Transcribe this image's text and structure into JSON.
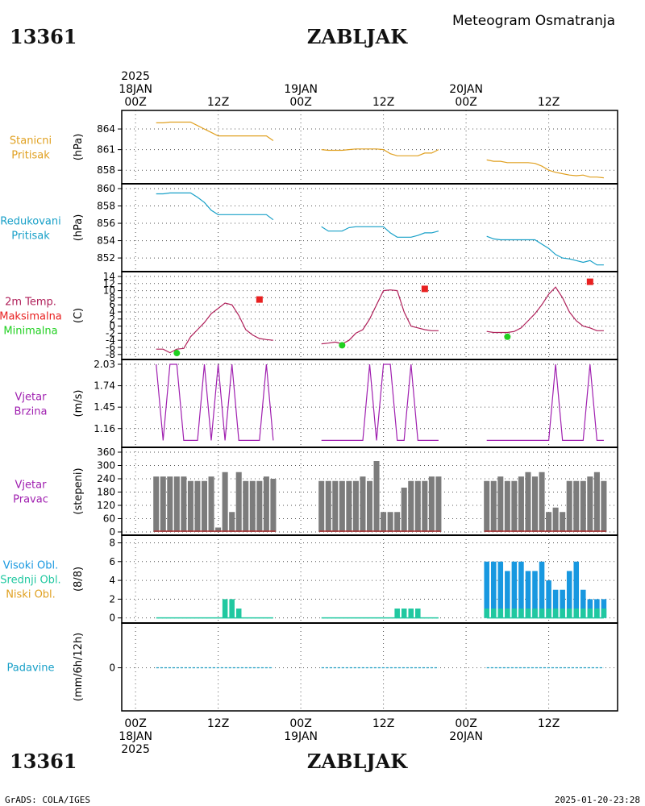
{
  "header": {
    "station_id": "13361",
    "station_name": "ZABLJAK",
    "title": "Meteogram Osmatranja"
  },
  "footer": {
    "station_id": "13361",
    "station_name": "ZABLJAK",
    "credit": "GrADS: COLA/IGES",
    "timestamp": "2025-01-20-23:28"
  },
  "time_axis": {
    "top_labels": [
      {
        "hour": 0,
        "lines": [
          "2025",
          "18JAN",
          "00Z"
        ]
      },
      {
        "hour": 12,
        "lines": [
          "12Z"
        ]
      },
      {
        "hour": 24,
        "lines": [
          "19JAN",
          "00Z"
        ]
      },
      {
        "hour": 36,
        "lines": [
          "12Z"
        ]
      },
      {
        "hour": 48,
        "lines": [
          "20JAN",
          "00Z"
        ]
      },
      {
        "hour": 60,
        "lines": [
          "12Z"
        ]
      }
    ],
    "bottom_labels": [
      {
        "hour": 0,
        "lines": [
          "00Z",
          "18JAN",
          "2025"
        ]
      },
      {
        "hour": 12,
        "lines": [
          "12Z"
        ]
      },
      {
        "hour": 24,
        "lines": [
          "00Z",
          "19JAN"
        ]
      },
      {
        "hour": 36,
        "lines": [
          "12Z"
        ]
      },
      {
        "hour": 48,
        "lines": [
          "00Z",
          "20JAN"
        ]
      },
      {
        "hour": 60,
        "lines": [
          "12Z"
        ]
      }
    ]
  },
  "colors": {
    "station_pressure": "#e0a020",
    "reduced_pressure": "#18a0c8",
    "temperature": "#b0205a",
    "tmax": "#e82020",
    "tmin": "#20d020",
    "wind": "#a020b0",
    "bars": "#7c7c7c",
    "cloud_high": "#1898e0",
    "cloud_mid": "#20c8a0",
    "cloud_low": "#e0a020",
    "precip": "#18a0c8"
  },
  "chart_data": [
    {
      "type": "line",
      "panel": "station_pressure",
      "labels": [
        "Stanicni",
        "Pritisak"
      ],
      "ylabel": "(hPa)",
      "ylim": [
        856.5,
        866.0
      ],
      "yticks": [
        858,
        861,
        864
      ],
      "series": [
        {
          "segment": 1,
          "x": [
            3,
            4,
            5,
            6,
            7,
            8,
            9,
            10,
            11,
            12,
            13,
            14,
            15,
            16,
            17,
            18,
            19,
            20
          ],
          "y": [
            864.9,
            864.9,
            865.0,
            865.0,
            865.0,
            865.0,
            864.5,
            864.0,
            863.5,
            863.0,
            863.0,
            863.0,
            863.0,
            863.0,
            863.0,
            863.0,
            863.0,
            862.3
          ]
        },
        {
          "segment": 2,
          "x": [
            27,
            28,
            29,
            30,
            31,
            32,
            33,
            34,
            35,
            36,
            37,
            38,
            39,
            40,
            41,
            42,
            43,
            44
          ],
          "y": [
            861.0,
            860.9,
            860.9,
            860.9,
            861.0,
            861.1,
            861.1,
            861.1,
            861.1,
            861.0,
            860.4,
            860.1,
            860.1,
            860.1,
            860.1,
            860.5,
            860.5,
            861.0
          ]
        },
        {
          "segment": 3,
          "x": [
            51,
            52,
            53,
            54,
            55,
            56,
            57,
            58,
            59,
            60,
            61,
            62,
            63,
            64,
            65,
            66,
            67,
            68
          ],
          "y": [
            859.5,
            859.3,
            859.3,
            859.1,
            859.1,
            859.1,
            859.1,
            859.0,
            858.6,
            858.0,
            857.7,
            857.5,
            857.3,
            857.2,
            857.3,
            857.0,
            857.0,
            856.9
          ]
        }
      ]
    },
    {
      "type": "line",
      "panel": "reduced_pressure",
      "labels": [
        "Redukovani",
        "Pritisak"
      ],
      "ylabel": "(hPa)",
      "ylim": [
        850.8,
        860.0
      ],
      "yticks": [
        852,
        854,
        856,
        858,
        860
      ],
      "series": [
        {
          "segment": 1,
          "x": [
            3,
            4,
            5,
            6,
            7,
            8,
            9,
            10,
            11,
            12,
            13,
            14,
            15,
            16,
            17,
            18,
            19,
            20
          ],
          "y": [
            859.4,
            859.4,
            859.5,
            859.5,
            859.5,
            859.5,
            859.0,
            858.4,
            857.5,
            857.0,
            857.0,
            857.0,
            857.0,
            857.0,
            857.0,
            857.0,
            857.0,
            856.4
          ]
        },
        {
          "segment": 2,
          "x": [
            27,
            28,
            29,
            30,
            31,
            32,
            33,
            34,
            35,
            36,
            37,
            38,
            39,
            40,
            41,
            42,
            43,
            44
          ],
          "y": [
            855.6,
            855.1,
            855.1,
            855.1,
            855.5,
            855.6,
            855.6,
            855.6,
            855.6,
            855.6,
            854.9,
            854.4,
            854.4,
            854.4,
            854.6,
            854.9,
            854.9,
            855.1
          ]
        },
        {
          "segment": 3,
          "x": [
            51,
            52,
            53,
            54,
            55,
            56,
            57,
            58,
            59,
            60,
            61,
            62,
            63,
            64,
            65,
            66,
            67,
            68
          ],
          "y": [
            854.5,
            854.2,
            854.1,
            854.1,
            854.1,
            854.1,
            854.1,
            854.1,
            853.6,
            853.1,
            852.4,
            852.0,
            851.9,
            851.7,
            851.5,
            851.7,
            851.2,
            851.2
          ]
        }
      ]
    },
    {
      "type": "line",
      "panel": "temperature",
      "labels": [
        "2m Temp.",
        "Maksimalna",
        "Minimalna"
      ],
      "ylabel": "(C)",
      "ylim": [
        -8.5,
        14.0
      ],
      "yticks": [
        -8,
        -6,
        -4,
        -2,
        0,
        2,
        4,
        6,
        8,
        10,
        12,
        14
      ],
      "series": [
        {
          "segment": 1,
          "x": [
            3,
            4,
            5,
            6,
            7,
            8,
            9,
            10,
            11,
            12,
            13,
            14,
            15,
            16,
            17,
            18,
            19,
            20
          ],
          "y": [
            -6.5,
            -6.5,
            -7.5,
            -6.5,
            -6.3,
            -3.0,
            -1.0,
            1.0,
            3.5,
            5.0,
            6.5,
            6.0,
            3.0,
            -1.0,
            -2.5,
            -3.5,
            -3.8,
            -4.0
          ]
        },
        {
          "segment": 2,
          "x": [
            27,
            28,
            29,
            30,
            31,
            32,
            33,
            34,
            35,
            36,
            37,
            38,
            39,
            40,
            41,
            42,
            43,
            44
          ],
          "y": [
            -5.0,
            -4.8,
            -4.5,
            -5.0,
            -4.0,
            -2.0,
            -1.0,
            2.0,
            6.0,
            10.0,
            10.2,
            10.0,
            4.0,
            0.0,
            -0.5,
            -1.0,
            -1.3,
            -1.3
          ]
        },
        {
          "segment": 3,
          "x": [
            51,
            52,
            53,
            54,
            55,
            56,
            57,
            58,
            59,
            60,
            61,
            62,
            63,
            64,
            65,
            66,
            67,
            68
          ],
          "y": [
            -1.5,
            -1.8,
            -1.8,
            -1.8,
            -1.5,
            -0.5,
            1.5,
            3.5,
            6.0,
            9.0,
            11.0,
            8.0,
            4.0,
            1.5,
            0.0,
            -0.5,
            -1.3,
            -1.3
          ]
        }
      ],
      "tmax_markers": [
        {
          "x": 18,
          "y": 7.5
        },
        {
          "x": 42,
          "y": 10.5
        },
        {
          "x": 66,
          "y": 12.5
        }
      ],
      "tmin_markers": [
        {
          "x": 6,
          "y": -7.6
        },
        {
          "x": 30,
          "y": -5.4
        },
        {
          "x": 54,
          "y": -3.0
        }
      ]
    },
    {
      "type": "line",
      "panel": "wind_speed",
      "labels": [
        "Vjetar",
        "Brzina"
      ],
      "ylabel": "(m/s)",
      "ylim": [
        0.95,
        2.03
      ],
      "yticks": [
        1.16,
        1.45,
        1.74,
        2.03
      ],
      "series": [
        {
          "segment": 1,
          "x": [
            3,
            4,
            5,
            6,
            7,
            8,
            9,
            10,
            11,
            12,
            13,
            14,
            15,
            16,
            17,
            18,
            19,
            20
          ],
          "y": [
            2.03,
            1.0,
            2.03,
            2.03,
            1.0,
            1.0,
            1.0,
            2.03,
            1.0,
            2.03,
            1.0,
            2.03,
            1.0,
            1.0,
            1.0,
            1.0,
            2.03,
            1.0
          ]
        },
        {
          "segment": 2,
          "x": [
            27,
            28,
            29,
            30,
            31,
            32,
            33,
            34,
            35,
            36,
            37,
            38,
            39,
            40,
            41,
            42,
            43,
            44
          ],
          "y": [
            1.0,
            1.0,
            1.0,
            1.0,
            1.0,
            1.0,
            1.0,
            2.03,
            1.0,
            2.03,
            2.03,
            1.0,
            1.0,
            2.03,
            1.0,
            1.0,
            1.0,
            1.0
          ]
        },
        {
          "segment": 3,
          "x": [
            51,
            52,
            53,
            54,
            55,
            56,
            57,
            58,
            59,
            60,
            61,
            62,
            63,
            64,
            65,
            66,
            67,
            68
          ],
          "y": [
            1.0,
            1.0,
            1.0,
            1.0,
            1.0,
            1.0,
            1.0,
            1.0,
            1.0,
            1.0,
            2.03,
            1.0,
            1.0,
            1.0,
            1.0,
            2.03,
            1.0,
            1.0
          ]
        }
      ]
    },
    {
      "type": "bar",
      "panel": "wind_direction",
      "labels": [
        "Vjetar",
        "Pravac"
      ],
      "ylabel": "(stepeni)",
      "ylim": [
        0,
        360
      ],
      "yticks": [
        0,
        60,
        120,
        180,
        240,
        300,
        360
      ],
      "series": [
        {
          "segment": 1,
          "x": [
            3,
            4,
            5,
            6,
            7,
            8,
            9,
            10,
            11,
            12,
            13,
            14,
            15,
            16,
            17,
            18,
            19,
            20
          ],
          "values": [
            250,
            250,
            250,
            250,
            250,
            230,
            230,
            230,
            250,
            20,
            270,
            90,
            270,
            230,
            230,
            230,
            250,
            240
          ]
        },
        {
          "segment": 2,
          "x": [
            27,
            28,
            29,
            30,
            31,
            32,
            33,
            34,
            35,
            36,
            37,
            38,
            39,
            40,
            41,
            42,
            43,
            44
          ],
          "values": [
            230,
            230,
            230,
            230,
            230,
            230,
            250,
            230,
            320,
            90,
            90,
            90,
            200,
            230,
            230,
            230,
            250,
            250
          ]
        },
        {
          "segment": 3,
          "x": [
            51,
            52,
            53,
            54,
            55,
            56,
            57,
            58,
            59,
            60,
            61,
            62,
            63,
            64,
            65,
            66,
            67,
            68
          ],
          "values": [
            230,
            230,
            250,
            230,
            230,
            250,
            270,
            250,
            270,
            90,
            110,
            90,
            230,
            230,
            230,
            250,
            270,
            230
          ]
        }
      ]
    },
    {
      "type": "bar",
      "panel": "clouds",
      "labels": [
        "Visoki Obl.",
        "Srednji Obl.",
        "Niski Obl."
      ],
      "ylabel": "(8/8)",
      "ylim": [
        -0.2,
        8.3
      ],
      "yticks": [
        0,
        2,
        4,
        6,
        8
      ],
      "series": [
        {
          "name": "Visoki Obl.",
          "x": [
            51,
            52,
            53,
            54,
            55,
            56,
            57,
            58,
            59,
            60,
            61,
            62,
            63,
            64,
            65,
            66,
            67,
            68
          ],
          "values": [
            6,
            6,
            6,
            5,
            6,
            6,
            5,
            5,
            6,
            4,
            3,
            3,
            5,
            6,
            3,
            2,
            2,
            2
          ]
        },
        {
          "name": "Srednji Obl.",
          "x": [
            13,
            14,
            15,
            38,
            39,
            40,
            41,
            51,
            52,
            53,
            54,
            55,
            56,
            57,
            58,
            59,
            60,
            61,
            62,
            63,
            64,
            65,
            66,
            67,
            68
          ],
          "values": [
            2,
            2,
            1,
            1,
            1,
            1,
            1,
            1,
            1,
            1,
            1,
            1,
            1,
            1,
            1,
            1,
            1,
            1,
            1,
            1,
            1,
            1,
            1,
            1,
            1
          ]
        }
      ]
    },
    {
      "type": "line",
      "panel": "precipitation",
      "labels": [
        "Padavine"
      ],
      "ylabel": "(mm/6h/12h)",
      "ylim": [
        -1,
        1
      ],
      "yticks": [
        0
      ],
      "series": [
        {
          "segment": 1,
          "x": [
            3,
            20
          ],
          "y": [
            0,
            0
          ]
        },
        {
          "segment": 2,
          "x": [
            27,
            44
          ],
          "y": [
            0,
            0
          ]
        },
        {
          "segment": 3,
          "x": [
            51,
            68
          ],
          "y": [
            0,
            0
          ]
        }
      ]
    }
  ]
}
